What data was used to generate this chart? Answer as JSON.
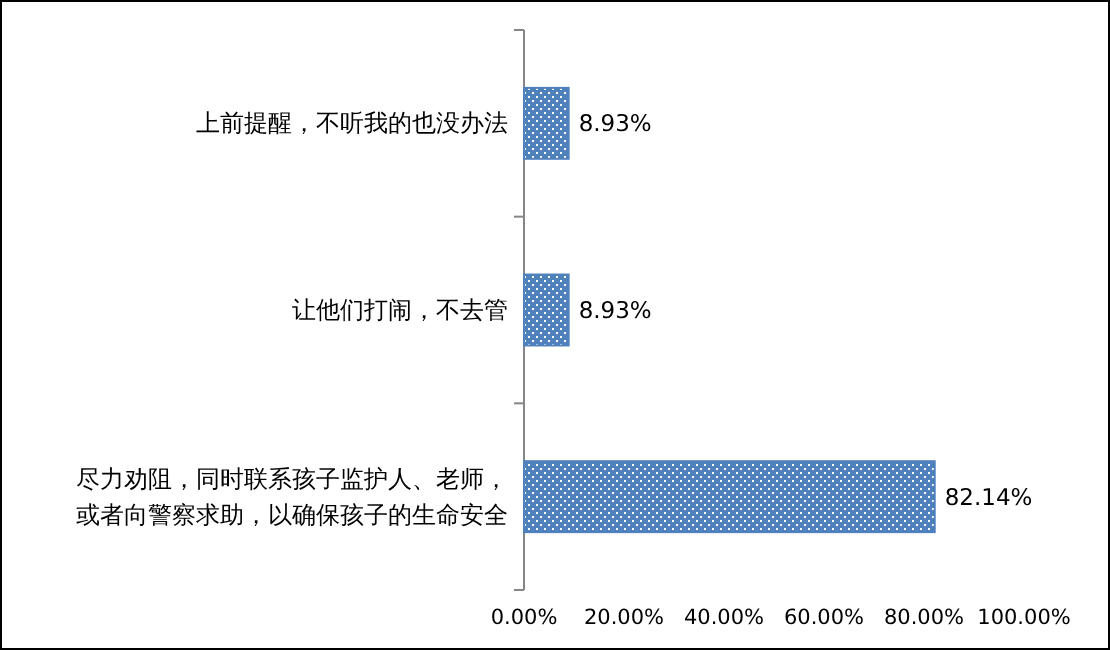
{
  "chart_data": {
    "type": "bar",
    "orientation": "horizontal",
    "categories": [
      "上前提醒，不听我的也没办法",
      "让他们打闹，不去管",
      "尽力劝阻，同时联系孩子监护人、老师，或者向警察求助，以确保孩子的生命安全"
    ],
    "values": [
      8.93,
      8.93,
      82.14
    ],
    "value_labels": [
      "8.93%",
      "8.93%",
      "82.14%"
    ],
    "color": "#4f81bd",
    "xlim": [
      0,
      100
    ],
    "xticks": [
      {
        "value": 0,
        "label": "0.00%"
      },
      {
        "value": 20,
        "label": "20.00%"
      },
      {
        "value": 40,
        "label": "40.00%"
      },
      {
        "value": 60,
        "label": "60.00%"
      },
      {
        "value": 80,
        "label": "80.00%"
      },
      {
        "value": 100,
        "label": "100.00%"
      }
    ],
    "grid": false
  }
}
